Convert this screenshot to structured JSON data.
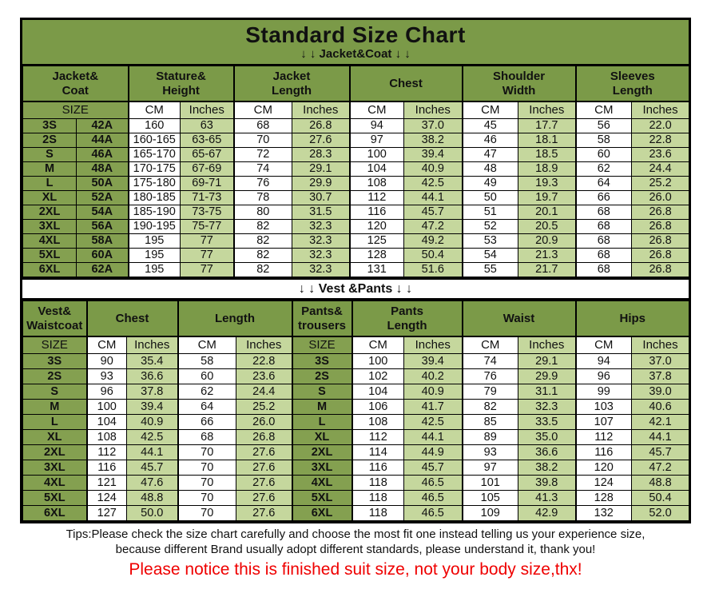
{
  "title": "Standard Size Chart",
  "colors": {
    "header_green": "#7b9a48",
    "label_green": "#84a050",
    "light_green": "#c5d79d",
    "notice_red": "#ef0000",
    "border_black": "#000000"
  },
  "jacket_table": {
    "arrow_label": "↓ ↓  Jacket&Coat ↓ ↓",
    "groups": [
      [
        "Jacket&",
        "Coat"
      ],
      [
        "Stature&",
        "Height"
      ],
      [
        "Jacket",
        "Length"
      ],
      [
        "Chest"
      ],
      [
        "Shoulder",
        "Width"
      ],
      [
        "Sleeves",
        "Length"
      ]
    ],
    "group_spans": [
      2,
      2,
      2,
      2,
      2,
      2
    ],
    "units": [
      {
        "label": "SIZE",
        "span": 2,
        "type": "size"
      },
      {
        "label": "CM",
        "span": 1,
        "type": "cm"
      },
      {
        "label": "Inches",
        "span": 1,
        "type": "in"
      },
      {
        "label": "CM",
        "span": 1,
        "type": "cm"
      },
      {
        "label": "Inches",
        "span": 1,
        "type": "in"
      },
      {
        "label": "CM",
        "span": 1,
        "type": "cm"
      },
      {
        "label": "Inches",
        "span": 1,
        "type": "in"
      },
      {
        "label": "CM",
        "span": 1,
        "type": "cm"
      },
      {
        "label": "Inches",
        "span": 1,
        "type": "in"
      },
      {
        "label": "CM",
        "span": 1,
        "type": "cm"
      },
      {
        "label": "Inches",
        "span": 1,
        "type": "in"
      }
    ],
    "cell_types": [
      "size",
      "size",
      "cm",
      "in",
      "cm",
      "in",
      "cm",
      "in",
      "cm",
      "in",
      "cm",
      "in"
    ],
    "rows": [
      [
        "3S",
        "42A",
        "160",
        "63",
        "68",
        "26.8",
        "94",
        "37.0",
        "45",
        "17.7",
        "56",
        "22.0"
      ],
      [
        "2S",
        "44A",
        "160-165",
        "63-65",
        "70",
        "27.6",
        "97",
        "38.2",
        "46",
        "18.1",
        "58",
        "22.8"
      ],
      [
        "S",
        "46A",
        "165-170",
        "65-67",
        "72",
        "28.3",
        "100",
        "39.4",
        "47",
        "18.5",
        "60",
        "23.6"
      ],
      [
        "M",
        "48A",
        "170-175",
        "67-69",
        "74",
        "29.1",
        "104",
        "40.9",
        "48",
        "18.9",
        "62",
        "24.4"
      ],
      [
        "L",
        "50A",
        "175-180",
        "69-71",
        "76",
        "29.9",
        "108",
        "42.5",
        "49",
        "19.3",
        "64",
        "25.2"
      ],
      [
        "XL",
        "52A",
        "180-185",
        "71-73",
        "78",
        "30.7",
        "112",
        "44.1",
        "50",
        "19.7",
        "66",
        "26.0"
      ],
      [
        "2XL",
        "54A",
        "185-190",
        "73-75",
        "80",
        "31.5",
        "116",
        "45.7",
        "51",
        "20.1",
        "68",
        "26.8"
      ],
      [
        "3XL",
        "56A",
        "190-195",
        "75-77",
        "82",
        "32.3",
        "120",
        "47.2",
        "52",
        "20.5",
        "68",
        "26.8"
      ],
      [
        "4XL",
        "58A",
        "195",
        "77",
        "82",
        "32.3",
        "125",
        "49.2",
        "53",
        "20.9",
        "68",
        "26.8"
      ],
      [
        "5XL",
        "60A",
        "195",
        "77",
        "82",
        "32.3",
        "128",
        "50.4",
        "54",
        "21.3",
        "68",
        "26.8"
      ],
      [
        "6XL",
        "62A",
        "195",
        "77",
        "82",
        "32.3",
        "131",
        "51.6",
        "55",
        "21.7",
        "68",
        "26.8"
      ]
    ]
  },
  "vest_table": {
    "divider_label": "↓ ↓  Vest &Pants ↓ ↓",
    "groups": [
      [
        "Vest&",
        "Waistcoat"
      ],
      [
        "Chest"
      ],
      [
        "Length"
      ],
      [
        "Pants&",
        "trousers"
      ],
      [
        "Pants",
        "Length"
      ],
      [
        "Waist"
      ],
      [
        "Hips"
      ]
    ],
    "group_spans": [
      1,
      2,
      2,
      1,
      2,
      2,
      2
    ],
    "units": [
      {
        "label": "SIZE",
        "span": 1,
        "type": "size"
      },
      {
        "label": "CM",
        "span": 1,
        "type": "cm"
      },
      {
        "label": "Inches",
        "span": 1,
        "type": "in"
      },
      {
        "label": "CM",
        "span": 1,
        "type": "cm"
      },
      {
        "label": "Inches",
        "span": 1,
        "type": "in"
      },
      {
        "label": "SIZE",
        "span": 1,
        "type": "size"
      },
      {
        "label": "CM",
        "span": 1,
        "type": "cm"
      },
      {
        "label": "Inches",
        "span": 1,
        "type": "in"
      },
      {
        "label": "CM",
        "span": 1,
        "type": "cm"
      },
      {
        "label": "Inches",
        "span": 1,
        "type": "in"
      },
      {
        "label": "CM",
        "span": 1,
        "type": "cm"
      },
      {
        "label": "Inches",
        "span": 1,
        "type": "in"
      }
    ],
    "cell_types": [
      "size",
      "cm",
      "in",
      "cm",
      "in",
      "size",
      "cm",
      "in",
      "cm",
      "in",
      "cm",
      "in"
    ],
    "rows": [
      [
        "3S",
        "90",
        "35.4",
        "58",
        "22.8",
        "3S",
        "100",
        "39.4",
        "74",
        "29.1",
        "94",
        "37.0"
      ],
      [
        "2S",
        "93",
        "36.6",
        "60",
        "23.6",
        "2S",
        "102",
        "40.2",
        "76",
        "29.9",
        "96",
        "37.8"
      ],
      [
        "S",
        "96",
        "37.8",
        "62",
        "24.4",
        "S",
        "104",
        "40.9",
        "79",
        "31.1",
        "99",
        "39.0"
      ],
      [
        "M",
        "100",
        "39.4",
        "64",
        "25.2",
        "M",
        "106",
        "41.7",
        "82",
        "32.3",
        "103",
        "40.6"
      ],
      [
        "L",
        "104",
        "40.9",
        "66",
        "26.0",
        "L",
        "108",
        "42.5",
        "85",
        "33.5",
        "107",
        "42.1"
      ],
      [
        "XL",
        "108",
        "42.5",
        "68",
        "26.8",
        "XL",
        "112",
        "44.1",
        "89",
        "35.0",
        "112",
        "44.1"
      ],
      [
        "2XL",
        "112",
        "44.1",
        "70",
        "27.6",
        "2XL",
        "114",
        "44.9",
        "93",
        "36.6",
        "116",
        "45.7"
      ],
      [
        "3XL",
        "116",
        "45.7",
        "70",
        "27.6",
        "3XL",
        "116",
        "45.7",
        "97",
        "38.2",
        "120",
        "47.2"
      ],
      [
        "4XL",
        "121",
        "47.6",
        "70",
        "27.6",
        "4XL",
        "118",
        "46.5",
        "101",
        "39.8",
        "124",
        "48.8"
      ],
      [
        "5XL",
        "124",
        "48.8",
        "70",
        "27.6",
        "5XL",
        "118",
        "46.5",
        "105",
        "41.3",
        "128",
        "50.4"
      ],
      [
        "6XL",
        "127",
        "50.0",
        "70",
        "27.6",
        "6XL",
        "118",
        "46.5",
        "109",
        "42.9",
        "132",
        "52.0"
      ]
    ]
  },
  "footer": {
    "tips_line1": "Tips:Please check the size chart carefully and choose the most fit one instead telling us your experience size,",
    "tips_line2": "because different Brand usually adopt different standards, please understand it, thank you!",
    "notice": "Please notice this is finished suit size, not your body size,thx!"
  }
}
